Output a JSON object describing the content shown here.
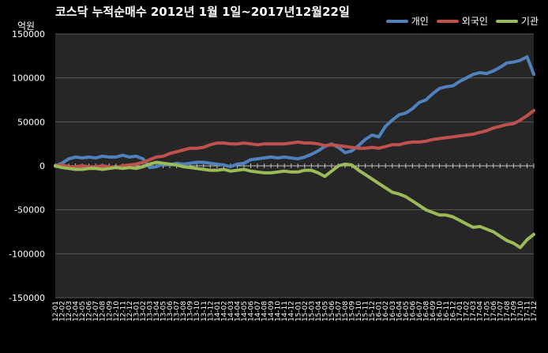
{
  "chart_data": {
    "type": "line",
    "title": "코스닥 누적순매수 2012년 1월 1일~2017년12월22일",
    "y_unit": "억원",
    "ylim": [
      -150000,
      150000
    ],
    "y_ticks": [
      150000,
      100000,
      50000,
      0,
      -50000,
      -100000,
      -150000
    ],
    "y_tick_labels": [
      "150000",
      "100000",
      "50000",
      "0",
      "-50000",
      "-100000",
      "-150000"
    ],
    "grid": "horizontal",
    "legend_position": "top-right",
    "x_tick_labels": [
      "12-01",
      "12-02",
      "12-03",
      "12-04",
      "12-05",
      "12-06",
      "12-07",
      "12-08",
      "12-09",
      "12-10",
      "12-11",
      "12-12",
      "13-01",
      "13-02",
      "13-03",
      "13-04",
      "13-05",
      "13-06",
      "13-07",
      "13-08",
      "13-09",
      "13-10",
      "13-11",
      "13-12",
      "14-01",
      "14-02",
      "14-03",
      "14-04",
      "14-05",
      "14-06",
      "14-07",
      "14-08",
      "14-09",
      "14-10",
      "14-11",
      "14-12",
      "15-01",
      "15-02",
      "15-03",
      "15-04",
      "15-05",
      "15-06",
      "15-07",
      "15-08",
      "15-09",
      "15-10",
      "15-11",
      "15-12",
      "16-01",
      "16-02",
      "16-03",
      "16-04",
      "16-05",
      "16-06",
      "16-07",
      "16-08",
      "16-09",
      "16-10",
      "16-11",
      "16-12",
      "17-01",
      "17-02",
      "17-03",
      "17-04",
      "17-05",
      "17-06",
      "17-07",
      "17-08",
      "17-09",
      "17-10",
      "17-11",
      "17-12"
    ],
    "series": [
      {
        "name": "개인",
        "color": "#4f81bd",
        "values": [
          0,
          3000,
          8000,
          10000,
          9000,
          10000,
          9000,
          11000,
          10000,
          10000,
          12000,
          10000,
          11000,
          8000,
          -2000,
          -1000,
          2000,
          1000,
          3000,
          2000,
          3000,
          4000,
          4000,
          3000,
          2000,
          1000,
          -1000,
          2000,
          3000,
          7000,
          8000,
          9000,
          10000,
          9000,
          10000,
          9000,
          8000,
          10000,
          13000,
          17000,
          22000,
          25000,
          21000,
          15000,
          17000,
          23000,
          30000,
          35000,
          33000,
          45000,
          52000,
          58000,
          60000,
          65000,
          72000,
          75000,
          82000,
          88000,
          90000,
          91000,
          96000,
          100000,
          104000,
          106000,
          105000,
          108000,
          112000,
          117000,
          118000,
          120000,
          124000,
          104000
        ]
      },
      {
        "name": "외국인",
        "color": "#c0504d",
        "values": [
          0,
          1000,
          -1000,
          -1000,
          0,
          -1000,
          -1000,
          0,
          -1000,
          -2000,
          0,
          1000,
          2000,
          4000,
          7000,
          10000,
          11000,
          14000,
          16000,
          18000,
          20000,
          20000,
          21000,
          24000,
          26000,
          26000,
          25000,
          25000,
          26000,
          25000,
          24000,
          25000,
          25000,
          25000,
          25000,
          26000,
          27000,
          26000,
          26000,
          25000,
          23000,
          24000,
          23000,
          22000,
          21000,
          20000,
          20000,
          21000,
          20000,
          22000,
          24000,
          24000,
          26000,
          27000,
          27000,
          28000,
          30000,
          31000,
          32000,
          33000,
          34000,
          35000,
          36000,
          38000,
          40000,
          43000,
          45000,
          47000,
          48000,
          52000,
          57000,
          63000
        ]
      },
      {
        "name": "기관",
        "color": "#9bbb59",
        "values": [
          0,
          -2000,
          -3000,
          -4000,
          -4000,
          -3000,
          -3000,
          -4000,
          -3000,
          -2000,
          -3000,
          -2000,
          -3000,
          -1000,
          2000,
          4000,
          3000,
          2000,
          1000,
          -1000,
          -2000,
          -3000,
          -4000,
          -5000,
          -5000,
          -4000,
          -6000,
          -5000,
          -4000,
          -6000,
          -7000,
          -8000,
          -8000,
          -7000,
          -6000,
          -7000,
          -7000,
          -5000,
          -5000,
          -8000,
          -12000,
          -6000,
          0,
          2000,
          1000,
          -5000,
          -10000,
          -15000,
          -20000,
          -25000,
          -30000,
          -32000,
          -35000,
          -40000,
          -45000,
          -50000,
          -53000,
          -56000,
          -56000,
          -58000,
          -62000,
          -66000,
          -70000,
          -69000,
          -72000,
          -75000,
          -80000,
          -85000,
          -88000,
          -93000,
          -84000,
          -78000
        ]
      }
    ]
  }
}
